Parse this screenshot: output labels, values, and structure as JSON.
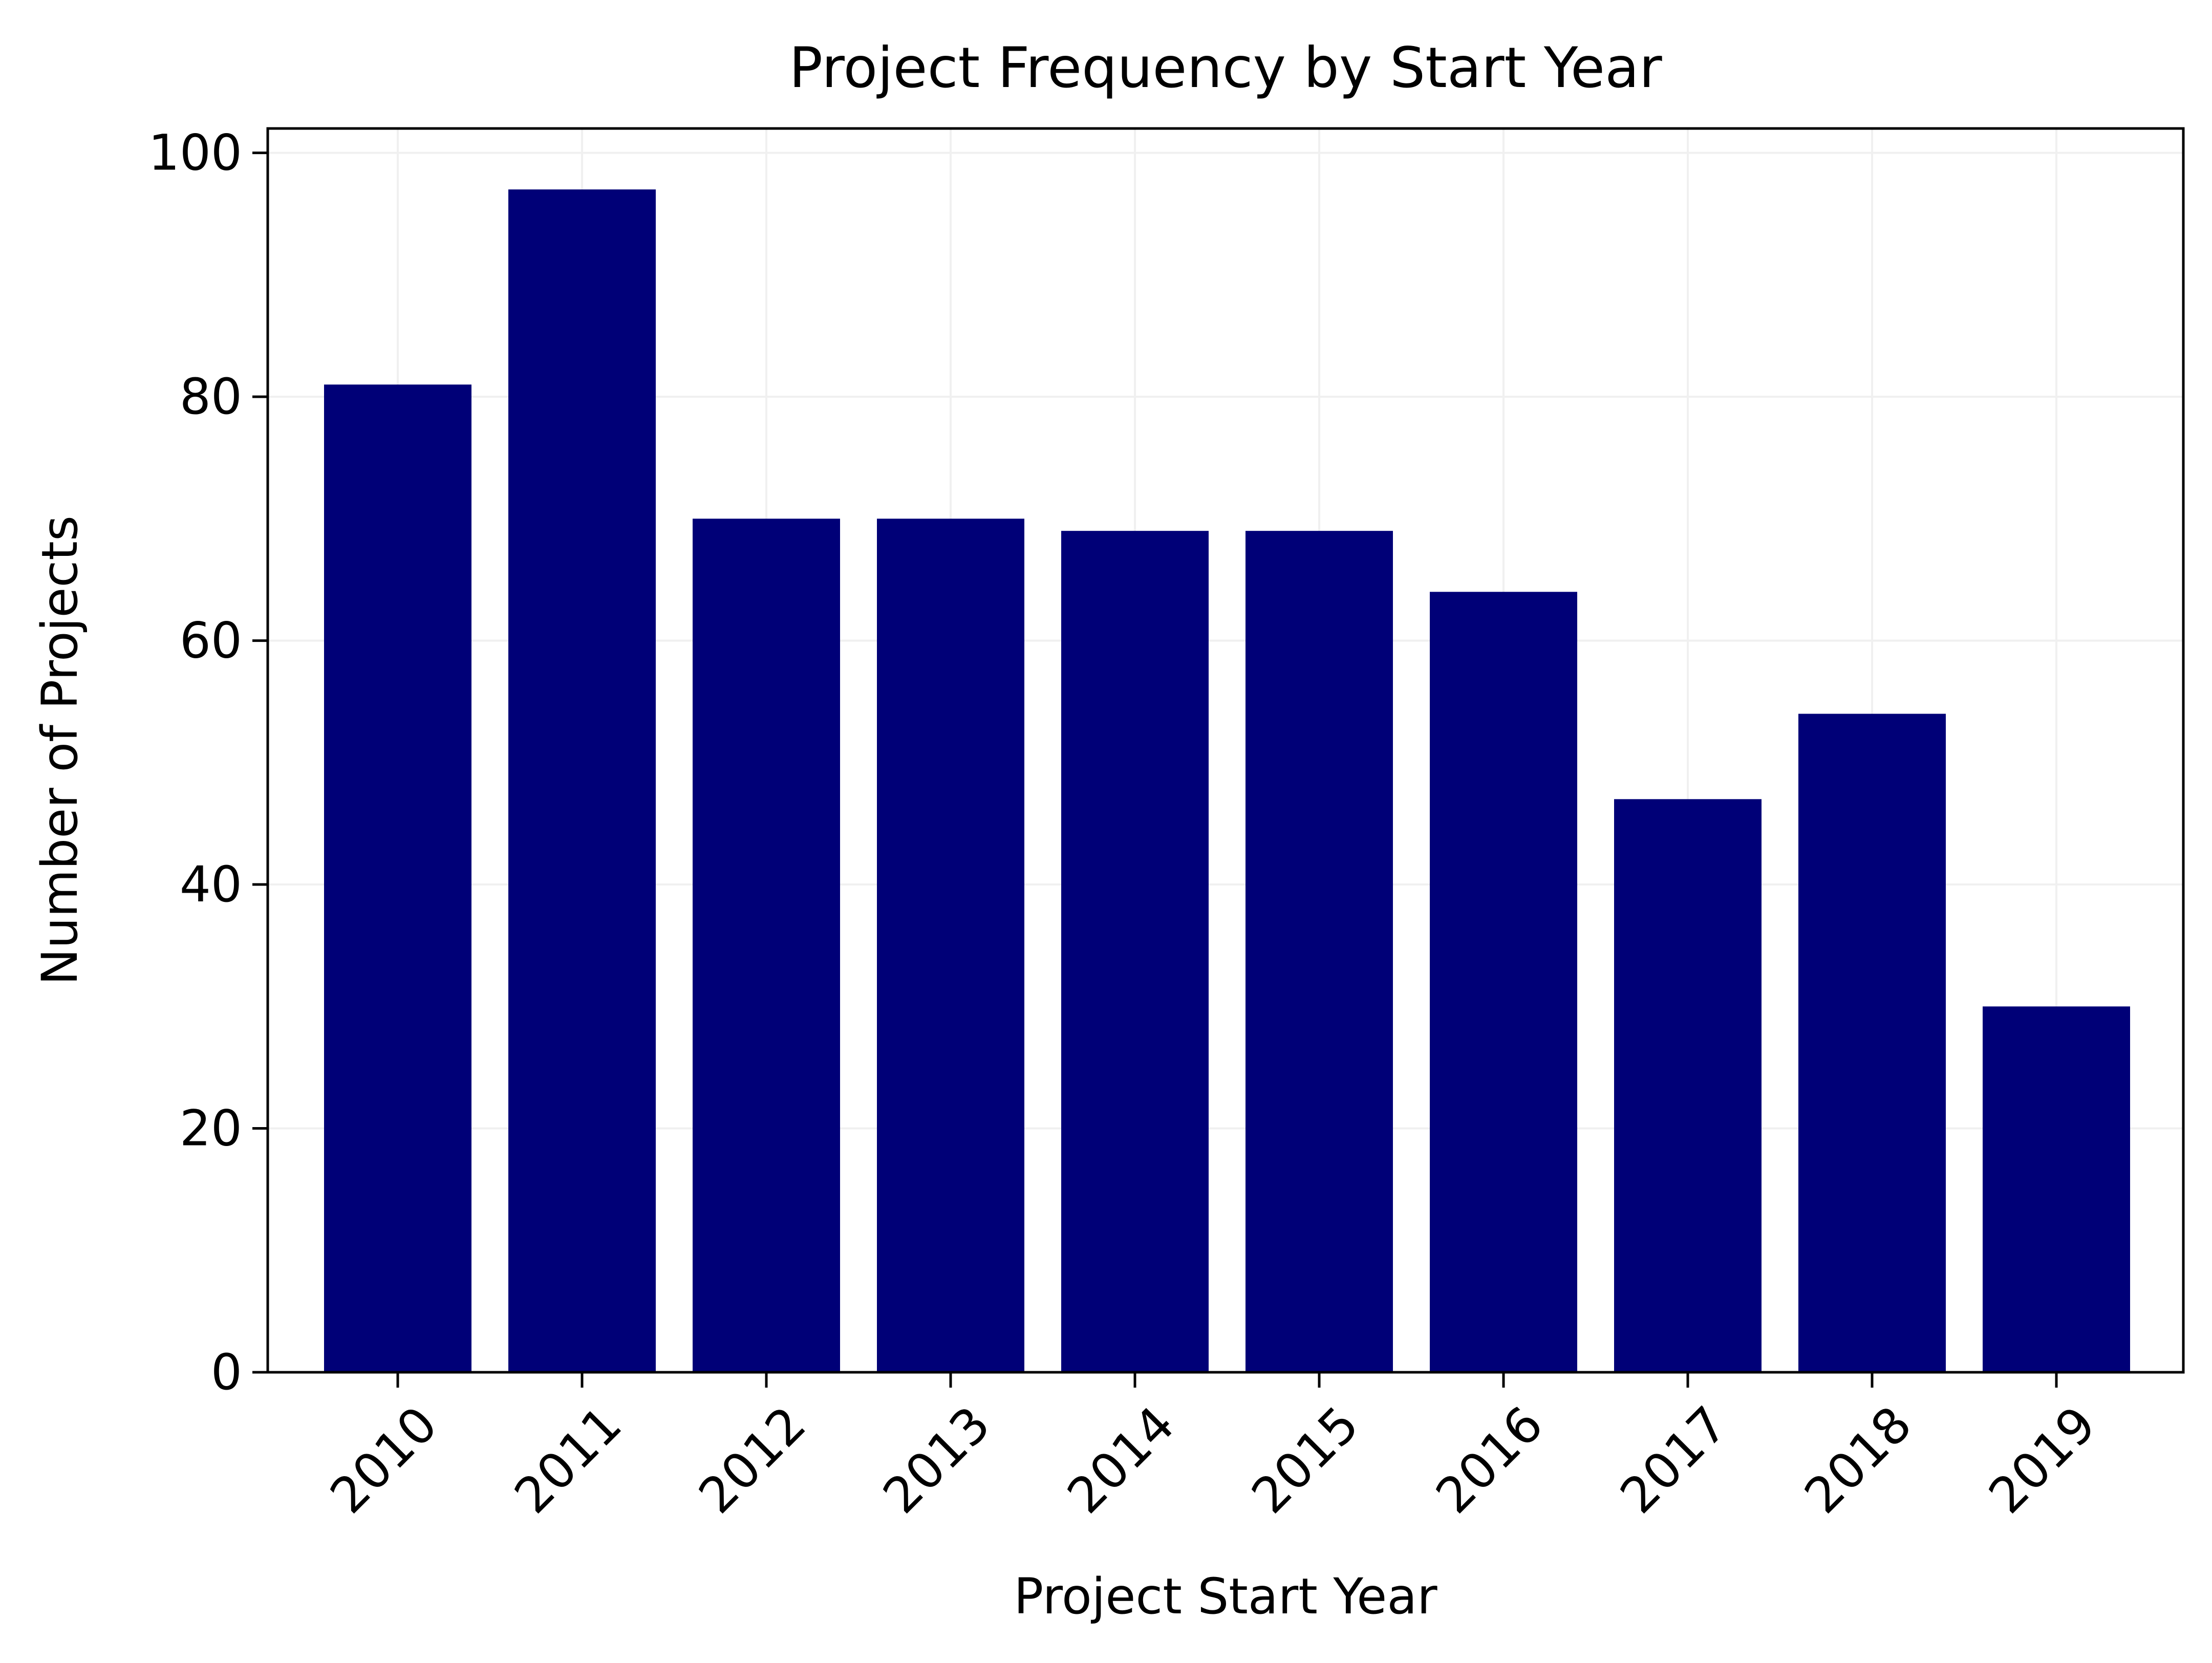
{
  "chart_data": {
    "type": "bar",
    "title": "Project Frequency by Start Year",
    "xlabel": "Project Start Year",
    "ylabel": "Number of Projects",
    "categories": [
      "2010",
      "2011",
      "2012",
      "2013",
      "2014",
      "2015",
      "2016",
      "2017",
      "2018",
      "2019"
    ],
    "values": [
      81,
      97,
      70,
      70,
      69,
      69,
      64,
      47,
      54,
      30
    ],
    "ylim": [
      0,
      102
    ],
    "yticks": [
      "0",
      "20",
      "40",
      "60",
      "80",
      "100"
    ],
    "grid": true,
    "x_tick_rotation": -45,
    "colors": {
      "bar": "#000077",
      "grid": "#f0f0f0",
      "axis": "#000000"
    }
  }
}
